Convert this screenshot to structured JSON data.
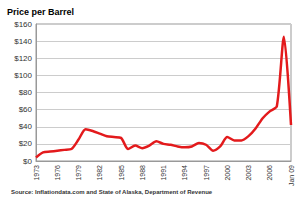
{
  "chart_data": {
    "type": "line",
    "title": "Price per Barrel",
    "source": "Source: Inflationdata.com and State of Alaska, Department of Revenue",
    "categories": [
      "1973",
      null,
      null,
      "1976",
      null,
      null,
      "1979",
      null,
      null,
      "1982",
      null,
      null,
      "1985",
      null,
      null,
      "1988",
      null,
      null,
      "1991",
      null,
      null,
      "1994",
      null,
      null,
      "1997",
      null,
      null,
      "2000",
      null,
      null,
      "2003",
      null,
      null,
      "2006",
      null,
      null,
      "Jan 09"
    ],
    "values": [
      4,
      10,
      11,
      12,
      13,
      14,
      25,
      37,
      35,
      32,
      29,
      28,
      27,
      14,
      18,
      15,
      18,
      23,
      20,
      19,
      17,
      16,
      17,
      21,
      19,
      12,
      17,
      28,
      24,
      24,
      29,
      38,
      50,
      58,
      64,
      145,
      42
    ],
    "color": "#e31a1c",
    "ylim": [
      0,
      160
    ],
    "yticks": [
      {
        "value": 0,
        "label": "$0"
      },
      {
        "value": 20,
        "label": "$20"
      },
      {
        "value": 40,
        "label": "$40"
      },
      {
        "value": 60,
        "label": "$60"
      },
      {
        "value": 80,
        "label": "$80"
      },
      {
        "value": 100,
        "label": "$100"
      },
      {
        "value": 120,
        "label": "$120"
      },
      {
        "value": 140,
        "label": "$140"
      },
      {
        "value": 160,
        "label": "$160"
      }
    ],
    "grid": true
  }
}
